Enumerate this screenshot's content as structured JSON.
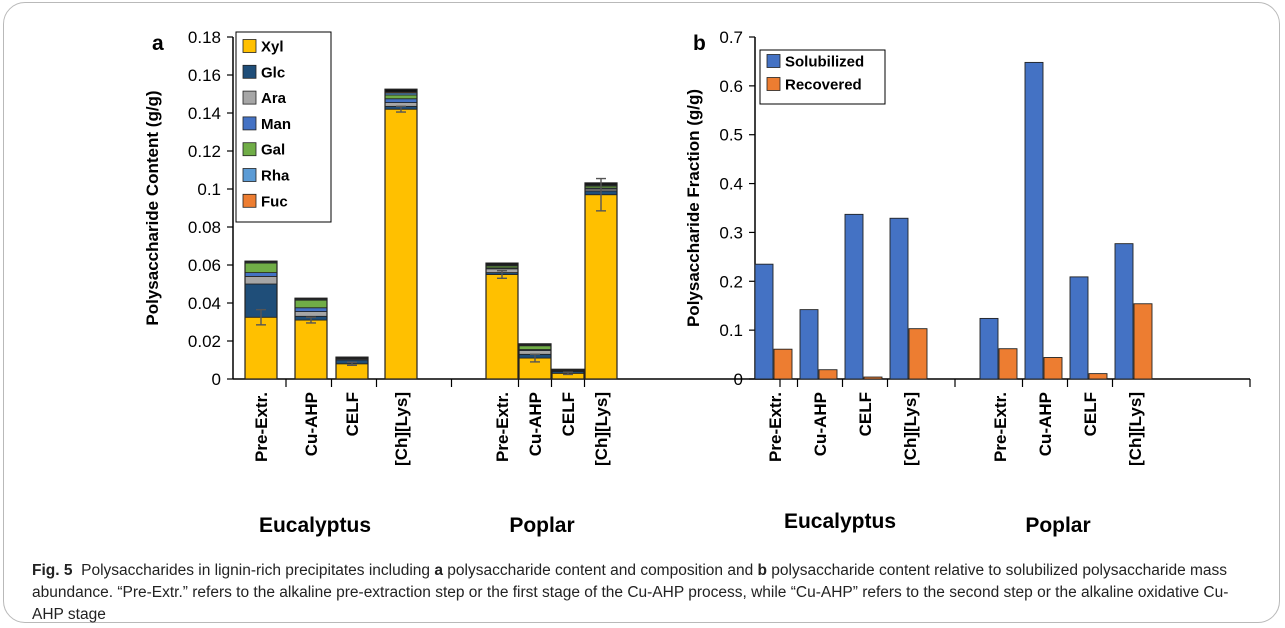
{
  "chart_data": [
    {
      "panel_label": "a",
      "type": "bar",
      "stacked": true,
      "ylabel": "Polysaccharide Content (g/g)",
      "ylim": [
        0,
        0.18
      ],
      "yticks": [
        0,
        0.02,
        0.04,
        0.06,
        0.08,
        0.1,
        0.12,
        0.14,
        0.16,
        0.18
      ],
      "ytick_labels": [
        "0",
        "0.02",
        "0.04",
        "0.06",
        "0.08",
        "0.1",
        "0.12",
        "0.14",
        "0.16",
        "0.18"
      ],
      "legend_position": "top-left",
      "groups": [
        {
          "label": "Eucalyptus",
          "categories": [
            "Pre-Extr.",
            "Cu-AHP",
            "CELF",
            "[Ch][Lys]"
          ]
        },
        {
          "label": "Poplar",
          "categories": [
            "Pre-Extr.",
            "Cu-AHP",
            "CELF",
            "[Ch][Lys]"
          ]
        }
      ],
      "series": [
        {
          "name": "Xyl",
          "color": "#FFC000",
          "values": [
            0.0325,
            0.031,
            0.008,
            0.142,
            0.055,
            0.011,
            0.003,
            0.097
          ]
        },
        {
          "name": "Glc",
          "color": "#1F4E79",
          "values": [
            0.0175,
            0.002,
            0.002,
            0.0015,
            0.001,
            0.002,
            0.001,
            0.002
          ]
        },
        {
          "name": "Ara",
          "color": "#A6A6A6",
          "values": [
            0.004,
            0.0025,
            0.0005,
            0.002,
            0.002,
            0.002,
            0.0005,
            0.001
          ]
        },
        {
          "name": "Man",
          "color": "#4472C4",
          "values": [
            0.002,
            0.002,
            0.0003,
            0.002,
            0.0005,
            0.0005,
            0.0001,
            0.0005
          ]
        },
        {
          "name": "Gal",
          "color": "#70AD47",
          "values": [
            0.005,
            0.004,
            0.0002,
            0.002,
            0.001,
            0.002,
            0.0001,
            0.001
          ]
        },
        {
          "name": "Rha",
          "color": "#5B9BD5",
          "values": [
            0.0005,
            0.0005,
            0.0001,
            0.001,
            0.0005,
            0.0005,
            0.0001,
            0.0005
          ]
        },
        {
          "name": "Fuc",
          "color": "#ED7D31",
          "values": [
            0.0002,
            0.0002,
            0.0001,
            0.0005,
            0.0002,
            0.0002,
            0.0001,
            0.0002
          ]
        },
        {
          "name": "",
          "color": "#111111",
          "values": [
            0.0003,
            0.0003,
            0.0003,
            0.0015,
            0.0008,
            0.0003,
            0.0002,
            0.001
          ]
        }
      ],
      "errors": [
        0.004,
        0.0015,
        0.0008,
        0.0015,
        0.002,
        0.002,
        0.0006,
        0.0085
      ]
    },
    {
      "panel_label": "b",
      "type": "bar",
      "ylabel": "Polysaccharide Fraction (g/g)",
      "ylim": [
        0,
        0.7
      ],
      "yticks": [
        0,
        0.1,
        0.2,
        0.3,
        0.4,
        0.5,
        0.6,
        0.7
      ],
      "ytick_labels": [
        "0",
        "0.1",
        "0.2",
        "0.3",
        "0.4",
        "0.5",
        "0.6",
        "0.7"
      ],
      "legend_position": "top-left",
      "groups": [
        {
          "label": "Eucalyptus",
          "categories": [
            "Pre-Extr.",
            "Cu-AHP",
            "CELF",
            "[Ch][Lys]"
          ]
        },
        {
          "label": "Poplar",
          "categories": [
            "Pre-Extr.",
            "Cu-AHP",
            "CELF",
            "[Ch][Lys]"
          ]
        }
      ],
      "series": [
        {
          "name": "Solubilized",
          "color": "#4472C4",
          "values": [
            0.235,
            0.142,
            0.337,
            0.329,
            0.124,
            0.648,
            0.209,
            0.277
          ]
        },
        {
          "name": "Recovered",
          "color": "#ED7D31",
          "values": [
            0.061,
            0.019,
            0.004,
            0.103,
            0.062,
            0.044,
            0.011,
            0.154
          ]
        }
      ]
    }
  ],
  "caption": {
    "fig_label": "Fig. 5",
    "part1": "Polysaccharides in lignin-rich precipitates including",
    "panel_a": "a",
    "part2": "polysaccharide content and composition and",
    "panel_b": "b",
    "part3": "polysaccharide content relative to solubilized polysaccharide mass abundance. “Pre-Extr.” refers to the alkaline pre-extraction step or the first stage of the Cu-AHP process, while “Cu-AHP” refers to the second step or the alkaline oxidative Cu-AHP stage"
  }
}
